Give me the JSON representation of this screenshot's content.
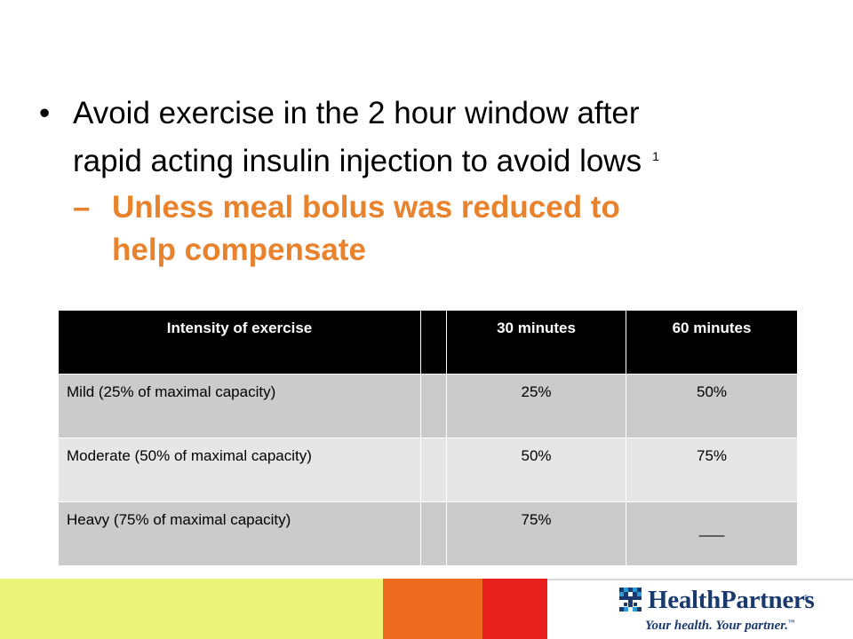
{
  "bullet": {
    "marker": "•",
    "line1": "Avoid exercise in the 2 hour window after",
    "line2": "rapid acting insulin injection to avoid lows",
    "footnote": "1"
  },
  "sub_bullet": {
    "marker": "–",
    "line1": "Unless meal bolus was reduced to",
    "line2": "help compensate",
    "color": "#e8822c"
  },
  "table": {
    "headers": [
      "Intensity of exercise",
      "",
      "30 minutes",
      "60 minutes"
    ],
    "rows": [
      {
        "label": "Mild (25% of maximal capacity)",
        "v30": "25%",
        "v60": "50%"
      },
      {
        "label": "Moderate (50% of maximal capacity)",
        "v30": "50%",
        "v60": "75%"
      },
      {
        "label": "Heavy (75% of maximal capacity)",
        "v30": "75%",
        "v60": "___"
      }
    ]
  },
  "footer": {
    "colors": [
      "#eaf37a",
      "#ed6b1e",
      "#e8211f",
      "#ffffff"
    ],
    "logo": {
      "name": "HealthPartners",
      "registered": "®",
      "tagline": "Your health. Your partner.",
      "tagline_mark": "™",
      "brand_color": "#1a3a6e"
    }
  }
}
